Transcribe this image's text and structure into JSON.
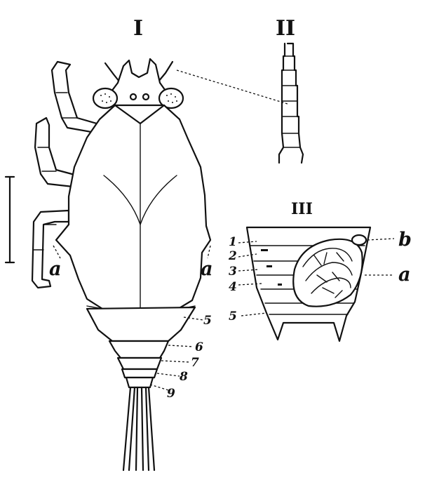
{
  "figure": {
    "panels": {
      "panel_1": {
        "numeral": "I"
      },
      "panel_2": {
        "numeral": "II"
      },
      "panel_3": {
        "numeral": "III"
      }
    },
    "labels": {
      "left_a": "a",
      "right_a": "a",
      "seg_5": "5",
      "seg_6": "6",
      "seg_7": "7",
      "seg_8": "8",
      "seg_9": "9",
      "p3_1": "1",
      "p3_2": "2",
      "p3_3": "3",
      "p3_4": "4",
      "p3_5": "5",
      "p3_b": "b",
      "p3_a": "a"
    }
  }
}
